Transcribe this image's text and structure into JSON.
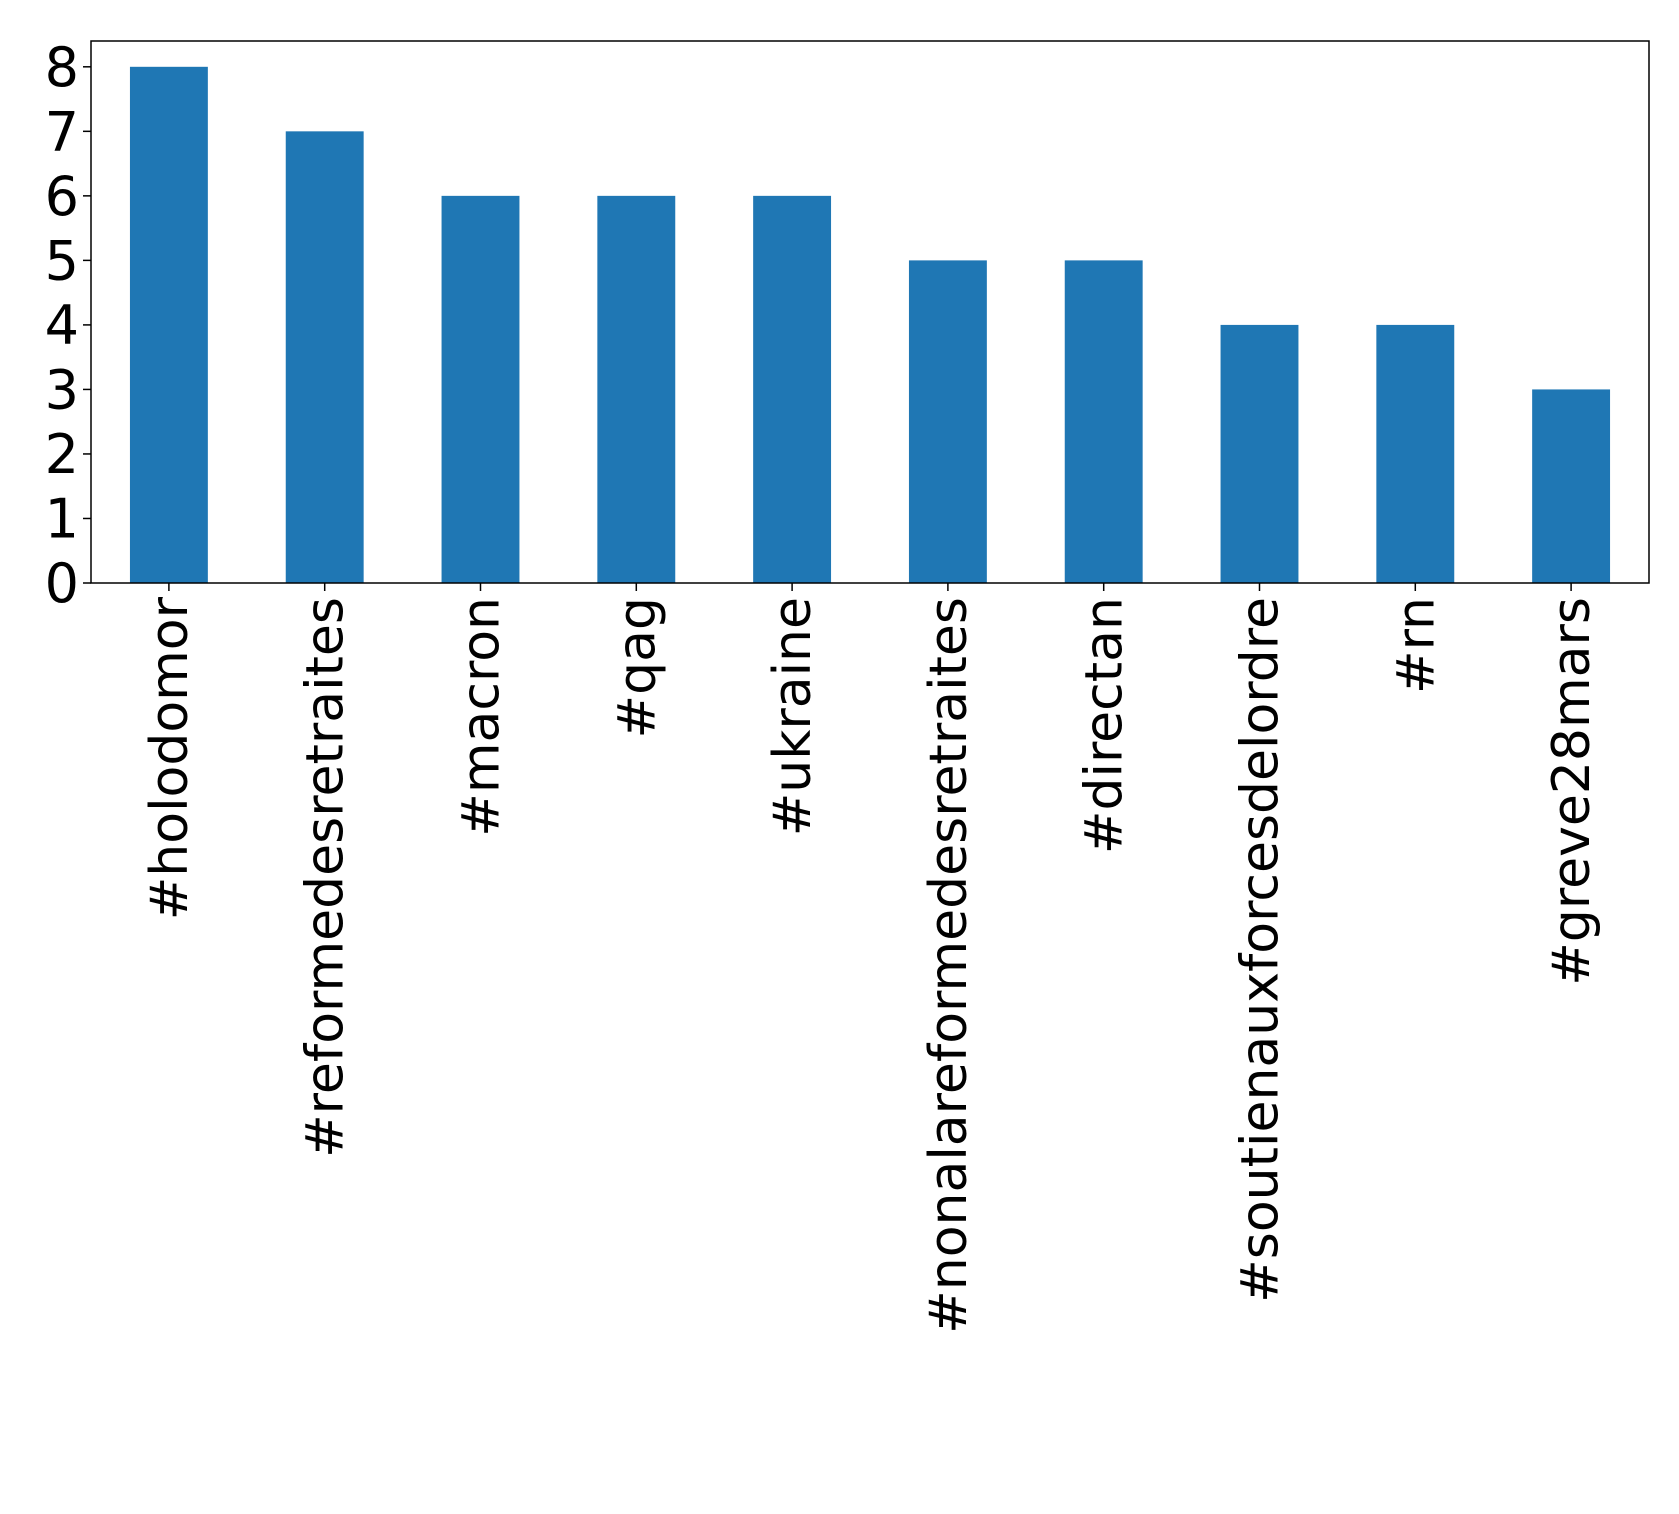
{
  "chart_data": {
    "type": "bar",
    "title": "",
    "xlabel": "",
    "ylabel": "",
    "categories": [
      "#holodomor",
      "#reformedesretraites",
      "#macron",
      "#qag",
      "#ukraine",
      "#nonalareformedesretraites",
      "#directan",
      "#soutienauxforcesdelordre",
      "#rn",
      "#greve28mars"
    ],
    "values": [
      8,
      7,
      6,
      6,
      6,
      5,
      5,
      4,
      4,
      3
    ],
    "ylim": [
      0,
      8.4
    ],
    "yticks": [
      0,
      1,
      2,
      3,
      4,
      5,
      6,
      7,
      8
    ],
    "bar_color": "#1f77b4",
    "grid": false,
    "legend": "none",
    "xtick_rotation": "vertical"
  }
}
